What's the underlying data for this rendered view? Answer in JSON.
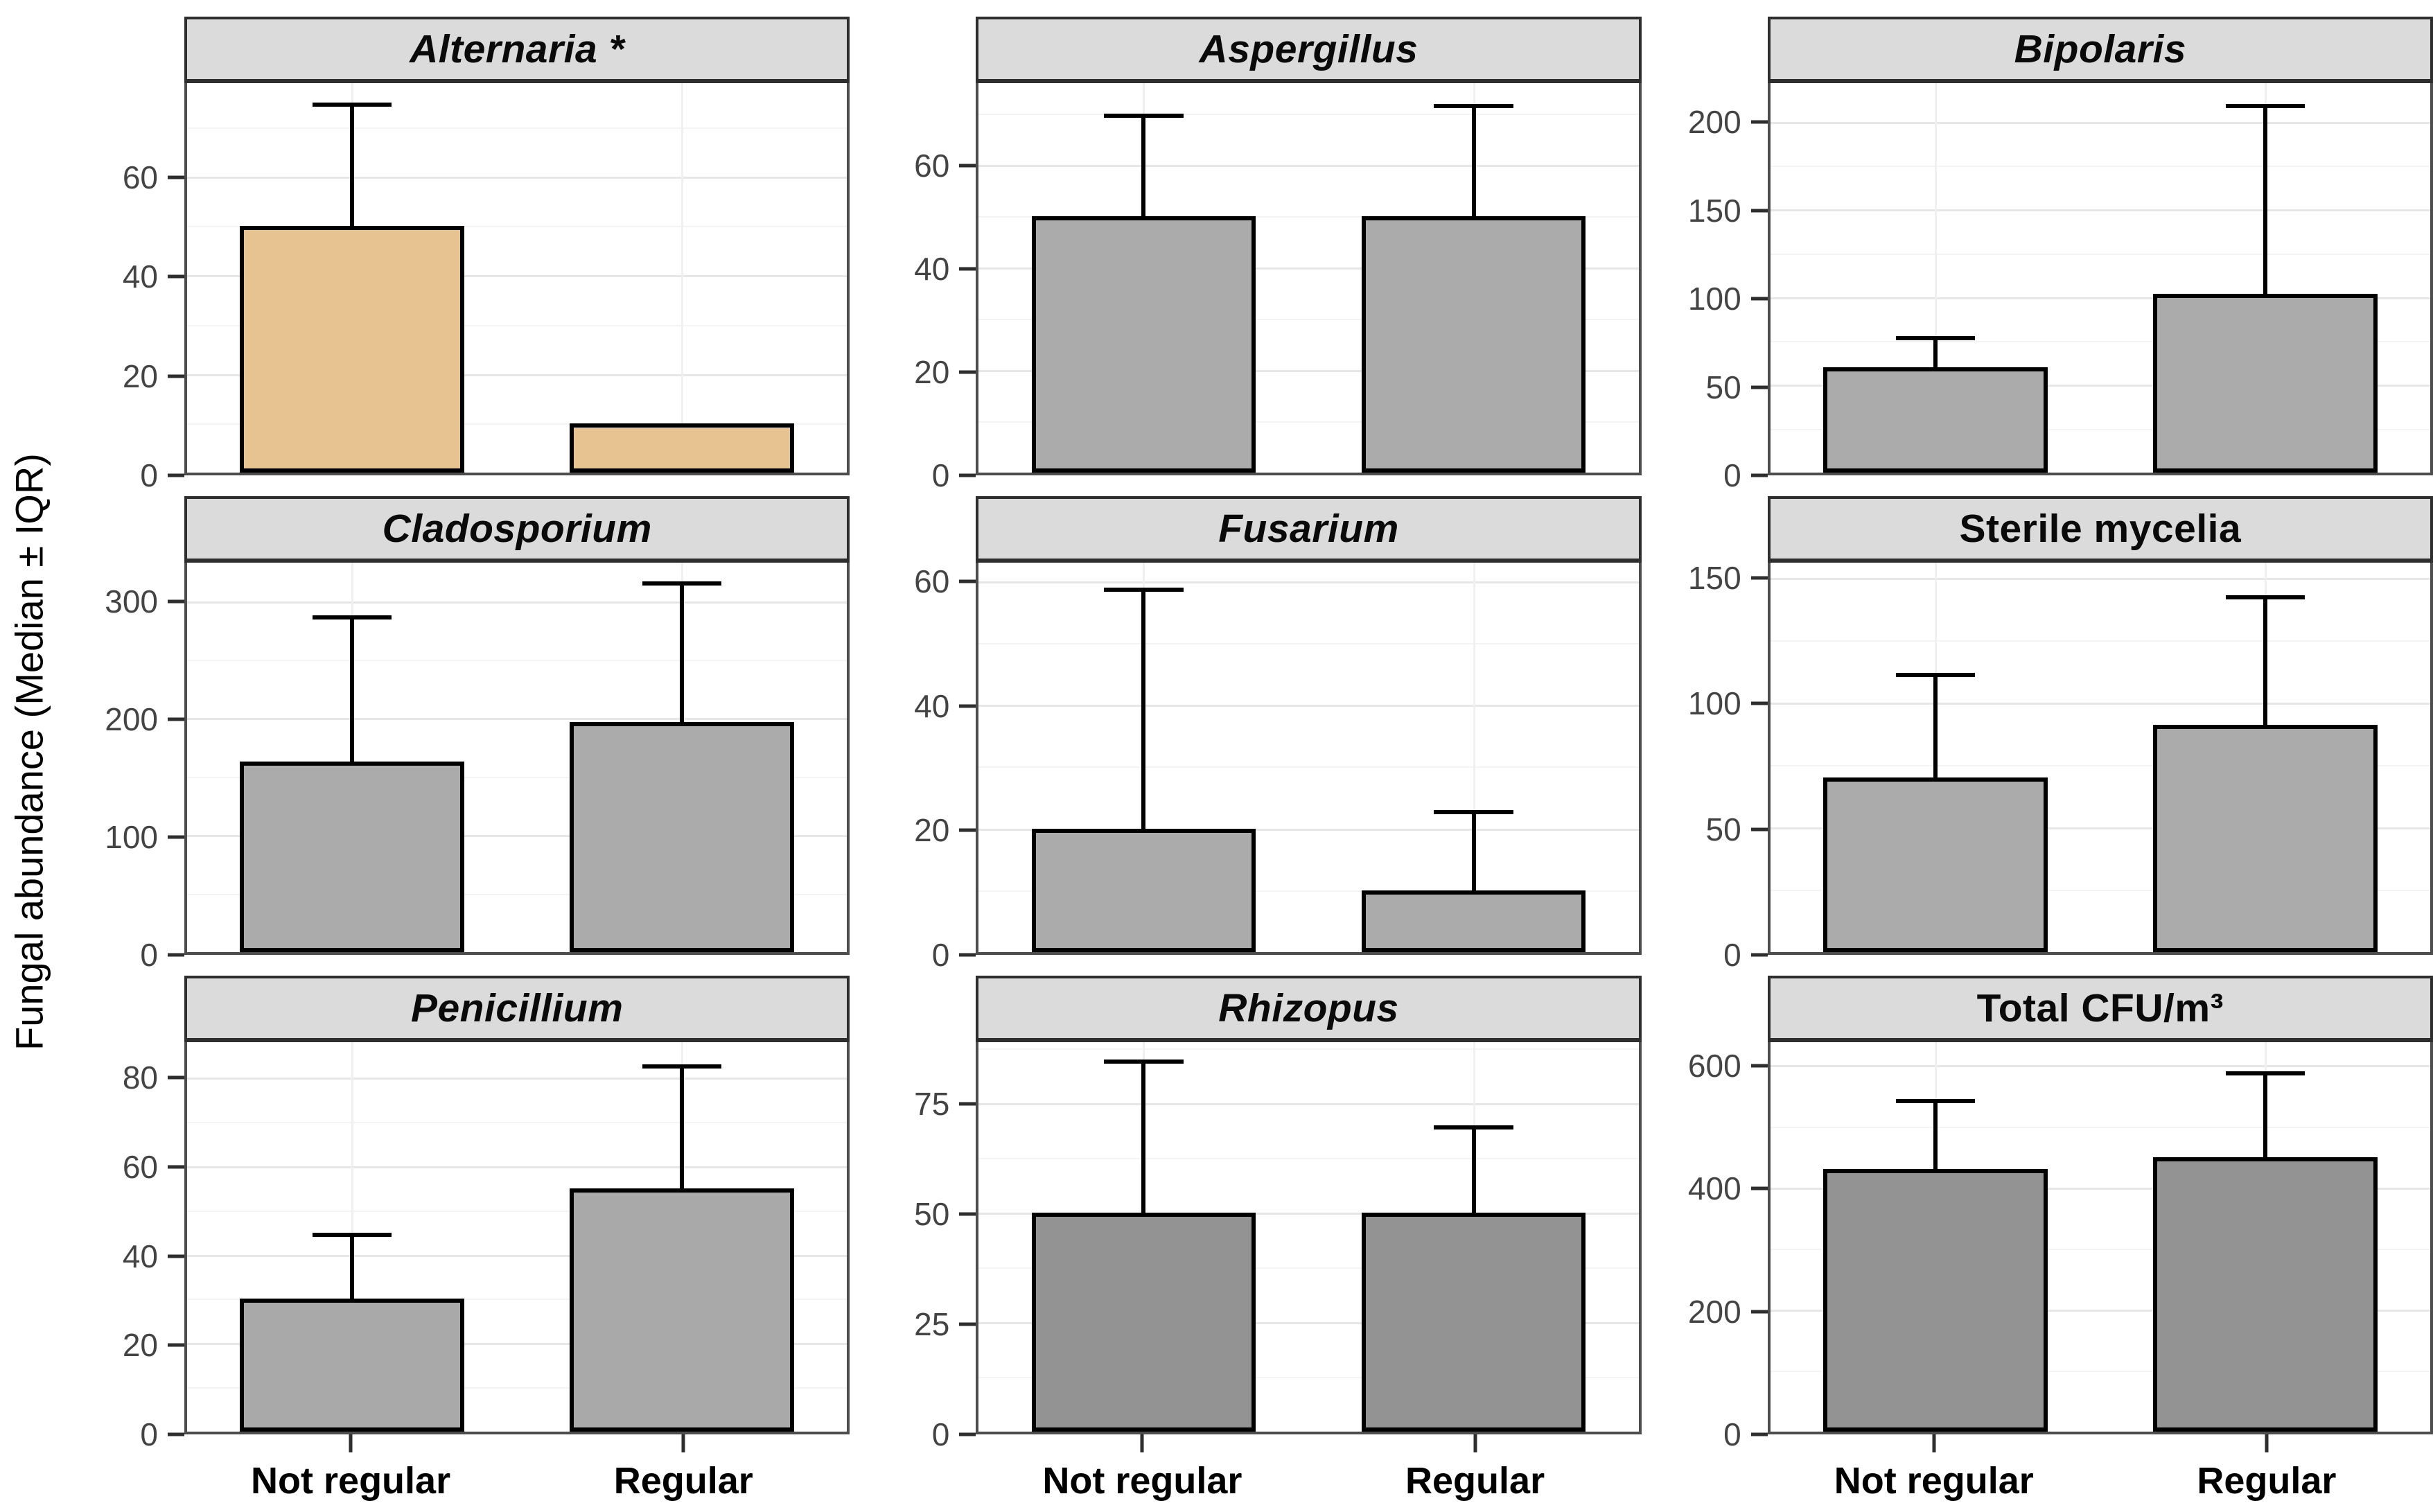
{
  "ylabel": "Fungal abundance (Median ± IQR)",
  "x_categories": [
    "Not regular",
    "Regular"
  ],
  "colors": {
    "alternaria_fill": "#E8C392",
    "gray_fill": "#ABABAB",
    "dark_gray_fill": "#939393",
    "strip_background": "#DBDBDB",
    "panel_border": "#4D4D4D",
    "bar_border": "#000000",
    "tick_label": "#444444"
  },
  "chart_data": [
    {
      "id": "alternaria",
      "type": "bar",
      "title": "Alternaria *",
      "title_italic": true,
      "categories": [
        "Not regular",
        "Regular"
      ],
      "values": [
        50,
        10
      ],
      "whiskers_upper": [
        75,
        10
      ],
      "yticks": [
        0,
        20,
        40,
        60
      ],
      "ymax": 79,
      "fill": "#E8C392",
      "ylabel": "",
      "xlabel": ""
    },
    {
      "id": "aspergillus",
      "type": "bar",
      "title": "Aspergillus",
      "title_italic": true,
      "categories": [
        "Not regular",
        "Regular"
      ],
      "values": [
        50,
        50
      ],
      "whiskers_upper": [
        70,
        72
      ],
      "yticks": [
        0,
        20,
        40,
        60
      ],
      "ymax": 76,
      "fill": "#ABABAB",
      "ylabel": "",
      "xlabel": ""
    },
    {
      "id": "bipolaris",
      "type": "bar",
      "title": "Bipolaris",
      "title_italic": true,
      "categories": [
        "Not regular",
        "Regular"
      ],
      "values": [
        60,
        102
      ],
      "whiskers_upper": [
        78,
        210
      ],
      "yticks": [
        0,
        50,
        100,
        150,
        200
      ],
      "ymax": 222,
      "fill": "#ABABAB",
      "ylabel": "",
      "xlabel": ""
    },
    {
      "id": "cladosporium",
      "type": "bar",
      "title": "Cladosporium",
      "title_italic": true,
      "categories": [
        "Not regular",
        "Regular"
      ],
      "values": [
        163,
        197
      ],
      "whiskers_upper": [
        288,
        317
      ],
      "yticks": [
        0,
        100,
        200,
        300
      ],
      "ymax": 333,
      "fill": "#ABABAB",
      "ylabel": "",
      "xlabel": ""
    },
    {
      "id": "fusarium",
      "type": "bar",
      "title": "Fusarium",
      "title_italic": true,
      "categories": [
        "Not regular",
        "Regular"
      ],
      "values": [
        20,
        10
      ],
      "whiskers_upper": [
        59,
        23
      ],
      "yticks": [
        0,
        20,
        40,
        60
      ],
      "ymax": 63,
      "fill": "#ABABAB",
      "ylabel": "",
      "xlabel": ""
    },
    {
      "id": "sterile-mycelia",
      "type": "bar",
      "title": "Sterile mycelia",
      "title_italic": false,
      "categories": [
        "Not regular",
        "Regular"
      ],
      "values": [
        70,
        91
      ],
      "whiskers_upper": [
        112,
        143
      ],
      "yticks": [
        0,
        50,
        100,
        150
      ],
      "ymax": 156,
      "fill": "#ABABAB",
      "ylabel": "",
      "xlabel": ""
    },
    {
      "id": "penicillium",
      "type": "bar",
      "title": "Penicillium",
      "title_italic": true,
      "categories": [
        "Not regular",
        "Regular"
      ],
      "values": [
        30,
        55
      ],
      "whiskers_upper": [
        45,
        83
      ],
      "yticks": [
        0,
        20,
        40,
        60,
        80
      ],
      "ymax": 88,
      "fill": "#A9A9A9",
      "ylabel": "",
      "xlabel": ""
    },
    {
      "id": "rhizopus",
      "type": "bar",
      "title": "Rhizopus",
      "title_italic": true,
      "categories": [
        "Not regular",
        "Regular"
      ],
      "values": [
        50,
        50
      ],
      "whiskers_upper": [
        85,
        70
      ],
      "yticks": [
        0,
        25,
        50,
        75
      ],
      "ymax": 89,
      "fill": "#939393",
      "ylabel": "",
      "xlabel": ""
    },
    {
      "id": "total-cfu",
      "type": "bar",
      "title": "Total CFU/m³",
      "title_italic": false,
      "categories": [
        "Not regular",
        "Regular"
      ],
      "values": [
        430,
        450
      ],
      "whiskers_upper": [
        545,
        590
      ],
      "yticks": [
        0,
        200,
        400,
        600
      ],
      "ymax": 638,
      "fill": "#939393",
      "ylabel": "",
      "xlabel": ""
    }
  ]
}
